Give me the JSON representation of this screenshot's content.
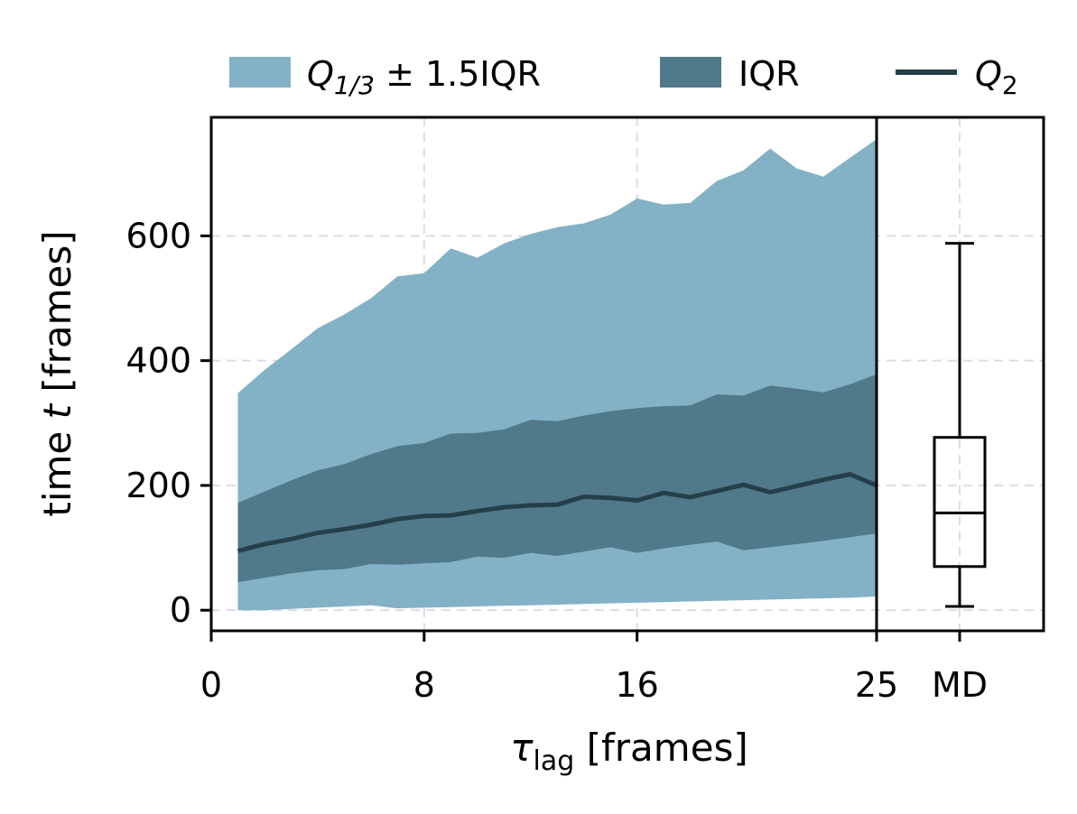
{
  "chart_data": {
    "type": "area",
    "colors": {
      "whisker_band": "#83b1c5",
      "iqr_band": "#50798a",
      "median_line": "#253f4a",
      "grid": "#dcdce6",
      "axes": "#000000"
    },
    "legend": {
      "placement": "top",
      "entries": [
        {
          "label_main": "Q",
          "label_sub": "1/3",
          "label_rest": " ± 1.5IQR",
          "kind": "patch",
          "color": "#83b1c5"
        },
        {
          "label_main": "IQR",
          "label_sub": "",
          "label_rest": "",
          "kind": "patch",
          "color": "#50798a"
        },
        {
          "label_main": "Q",
          "label_sub": "2",
          "label_rest": "",
          "kind": "line",
          "color": "#253f4a"
        }
      ]
    },
    "xlabel": {
      "symbol": "τ",
      "sub": "lag",
      "rest": " [frames]"
    },
    "ylabel": {
      "pre": "time ",
      "var": "t",
      "post": " [frames]"
    },
    "xlim": [
      0,
      25
    ],
    "ylim": [
      -33,
      790
    ],
    "xticks": [
      0,
      8,
      16,
      25
    ],
    "xtick_labels": [
      "0",
      "8",
      "16",
      "25"
    ],
    "yticks": [
      0,
      200,
      400,
      600
    ],
    "ytick_labels": [
      "0",
      "200",
      "400",
      "600"
    ],
    "md_tick_label": "MD",
    "x": [
      1,
      2,
      3,
      4,
      5,
      6,
      7,
      8,
      9,
      10,
      11,
      12,
      13,
      14,
      15,
      16,
      17,
      18,
      19,
      20,
      21,
      22,
      23,
      24,
      25
    ],
    "series": [
      {
        "name": "upper_whisker",
        "values": [
          348,
          385,
          418,
          452,
          474,
          500,
          535,
          540,
          580,
          565,
          588,
          603,
          614,
          620,
          634,
          660,
          650,
          653,
          688,
          705,
          740,
          708,
          695,
          725,
          755
        ]
      },
      {
        "name": "lower_whisker",
        "values": [
          0,
          0,
          2,
          4,
          6,
          8,
          3,
          4,
          5,
          6,
          7,
          8,
          9,
          10,
          11,
          12,
          13,
          14,
          15,
          16,
          17,
          18,
          19,
          20,
          22
        ]
      },
      {
        "name": "q3",
        "values": [
          172,
          190,
          208,
          224,
          234,
          250,
          263,
          268,
          283,
          284,
          290,
          305,
          303,
          312,
          319,
          324,
          327,
          328,
          346,
          344,
          360,
          355,
          349,
          362,
          378
        ]
      },
      {
        "name": "q1",
        "values": [
          45,
          52,
          59,
          64,
          66,
          74,
          73,
          75,
          77,
          86,
          84,
          92,
          87,
          94,
          101,
          92,
          99,
          105,
          110,
          96,
          101,
          106,
          111,
          117,
          123
        ]
      },
      {
        "name": "median",
        "values": [
          95,
          106,
          114,
          124,
          130,
          137,
          146,
          151,
          152,
          159,
          165,
          168,
          169,
          182,
          180,
          176,
          188,
          181,
          191,
          201,
          189,
          199,
          209,
          218,
          200
        ]
      }
    ],
    "boxplot_md": {
      "label": "MD",
      "whisker_low": 6,
      "q1": 70,
      "median": 156,
      "q3": 277,
      "whisker_high": 588
    }
  }
}
